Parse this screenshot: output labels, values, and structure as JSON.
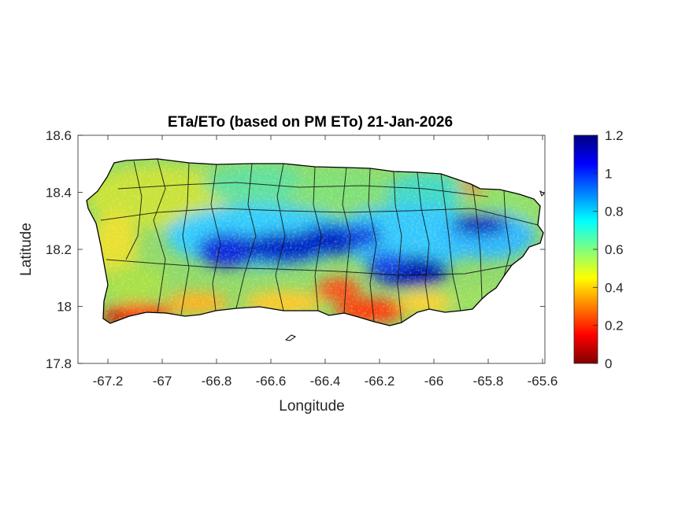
{
  "chart_data": {
    "type": "heatmap",
    "title": "ETa/ETo (based on PM ETo) 21-Jan-2026",
    "xlabel": "Longitude",
    "ylabel": "Latitude",
    "xlim": [
      -67.3,
      -65.58
    ],
    "ylim": [
      17.8,
      18.6
    ],
    "xticks": [
      "-67.2",
      "-67",
      "-66.8",
      "-66.6",
      "-66.4",
      "-66.2",
      "-66",
      "-65.8",
      "-65.6"
    ],
    "yticks": [
      "17.8",
      "18",
      "18.2",
      "18.4",
      "18.6"
    ],
    "grid": false,
    "colorbar": {
      "colormap": "jet",
      "range": [
        0,
        1.2
      ],
      "ticks": [
        "0",
        "0.2",
        "0.4",
        "0.6",
        "0.8",
        "1",
        "1.2"
      ]
    },
    "regions": [
      {
        "lon": -66.45,
        "lat": 18.2,
        "value": 1.05
      },
      {
        "lon": -66.1,
        "lat": 18.14,
        "value": 1.05
      },
      {
        "lon": -65.82,
        "lat": 18.28,
        "value": 1.0
      },
      {
        "lon": -67.15,
        "lat": 17.98,
        "value": 0.2
      },
      {
        "lon": -66.35,
        "lat": 18.03,
        "value": 0.2
      },
      {
        "lon": -66.2,
        "lat": 17.98,
        "value": 0.2
      },
      {
        "lon": -67.1,
        "lat": 18.3,
        "value": 0.6
      },
      {
        "lon": -66.7,
        "lat": 18.42,
        "value": 0.65
      },
      {
        "lon": -65.7,
        "lat": 18.35,
        "value": 0.7
      }
    ]
  }
}
